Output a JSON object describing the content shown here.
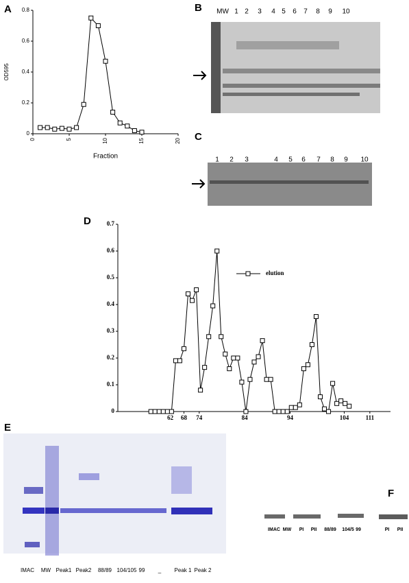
{
  "panels": [
    "A",
    "B",
    "C",
    "D",
    "E",
    "F"
  ],
  "chart_data": [
    {
      "type": "line",
      "x_label": "Fraction",
      "y_label": "OD595",
      "color": "#000000",
      "x": [
        1,
        2,
        3,
        4,
        5,
        6,
        7,
        8,
        9,
        10,
        11,
        12,
        13,
        14,
        15
      ],
      "values": [
        0.04,
        0.04,
        0.03,
        0.035,
        0.03,
        0.04,
        0.19,
        0.75,
        0.7,
        0.47,
        0.14,
        0.07,
        0.05,
        0.02,
        0.01
      ],
      "xlim": [
        0,
        20
      ],
      "xticks": [
        0,
        5,
        10,
        15,
        20
      ],
      "ylim": [
        0,
        0.8
      ],
      "yticks": [
        0,
        0.2,
        0.4,
        0.6,
        0.8
      ]
    },
    {
      "type": "line",
      "legend": "elution",
      "color": "#000000",
      "x": [
        1,
        2,
        3,
        4,
        5,
        6,
        7,
        8,
        9,
        10,
        11,
        12,
        13,
        14,
        15,
        16,
        17,
        18,
        19,
        20,
        21,
        22,
        23,
        24,
        25,
        26,
        27,
        28,
        29,
        30,
        31,
        32,
        33,
        34,
        35,
        36,
        37,
        38,
        39,
        40,
        41,
        42,
        43,
        44,
        45,
        46,
        47,
        48,
        49
      ],
      "values": [
        0,
        0,
        0,
        0,
        0,
        0,
        0.19,
        0.19,
        0.235,
        0.44,
        0.415,
        0.455,
        0.08,
        0.165,
        0.28,
        0.395,
        0.6,
        0.28,
        0.215,
        0.16,
        0.2,
        0.2,
        0.11,
        0,
        0.12,
        0.185,
        0.205,
        0.265,
        0.12,
        0.12,
        0,
        0,
        0,
        0,
        0.015,
        0.015,
        0.025,
        0.16,
        0.175,
        0.25,
        0.355,
        0.055,
        0.01,
        0,
        0.105,
        0.03,
        0.04,
        0.03,
        0.02
      ],
      "xlim": [
        -7,
        59
      ],
      "xticks": [
        {
          "value": 5.7,
          "label": "62"
        },
        {
          "value": 9,
          "label": "68"
        },
        {
          "value": 12.7,
          "label": "74"
        },
        {
          "value": 23.7,
          "label": "84"
        },
        {
          "value": 34.7,
          "label": "94"
        },
        {
          "value": 47.8,
          "label": "104"
        },
        {
          "value": 54,
          "label": "111"
        }
      ],
      "ylim": [
        0,
        0.7
      ],
      "yticks": [
        0,
        0.1,
        0.2,
        0.3,
        0.4,
        0.5,
        0.6,
        0.7
      ]
    }
  ],
  "gel_b_lanes": [
    "MW",
    "1",
    "2",
    "3",
    "4",
    "5",
    "6",
    "7",
    "8",
    "9",
    "10"
  ],
  "gel_c_lanes": [
    "1",
    "2",
    "3",
    "4",
    "5",
    "6",
    "7",
    "8",
    "9",
    "10"
  ],
  "gel_e_lanes": [
    "IMAC",
    "MW",
    "Peak1",
    "Peak2",
    "88/89",
    "104/105",
    "99",
    "_",
    "Peak 1",
    "Peak 2"
  ],
  "gel_f_lanes": [
    "IMAC",
    "MW",
    "PI",
    "PII",
    "88/89",
    "104/5",
    "99",
    "PI",
    "PII"
  ]
}
